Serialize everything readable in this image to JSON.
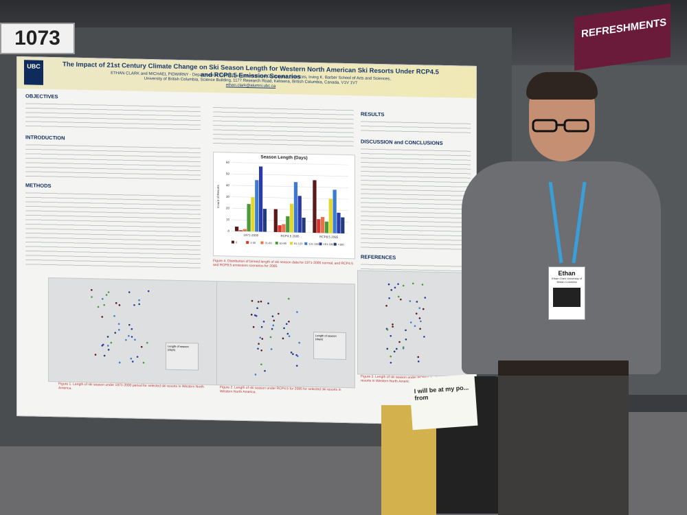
{
  "booth_number": "1073",
  "banner_text": "REFRESHMENTS",
  "poster": {
    "logo": "UBC",
    "title": "The Impact of 21st Century Climate Change on Ski Season Length for Western North American Ski Resorts Under RCP4.5 and RCP8.5 Emission Scenarios",
    "authors": "ETHAN CLARK and MICHAEL PIDWIRNY - Department of Earth, Environmental and Geographic Sciences, Irving K. Barber School of Arts and Sciences,",
    "affiliation": "University of British Columbia, Science Building, 1177 Research Road, Kelowna, British Columbia, Canada, V1V 1V7",
    "email": "ethan.clark@alumni.ubc.ca",
    "sections": {
      "objectives": "OBJECTIVES",
      "introduction": "INTRODUCTION",
      "methods": "METHODS",
      "results": "RESULTS",
      "discussion": "DISCUSSION and CONCLUSIONS",
      "references": "REFERENCES"
    },
    "chart_caption": "Figure 4. Distribution of binned length of ski season data for 1971-2000 normal, and RCP4.5 and RCP8.5 emissions scenarios for 2085.",
    "map_captions": [
      "Figure 1. Length of ski season under 1971-2000 period for selected ski resorts in Western North America.",
      "Figure 2. Length of ski season under RCP4.5 for 2085 for selected ski resorts in Western North America.",
      "Figure 3. Length of ski season under RCP8.5 for 2085 for selected ski resorts in Western North America."
    ],
    "map_legend_title": "Length of season (days)"
  },
  "chart_data": {
    "type": "bar",
    "title": "Season Length (Days)",
    "categories": [
      "1971-2000",
      "RCP4.5 2085",
      "RCP8.5 2085"
    ],
    "series": [
      {
        "name": "0",
        "color": "#5a1a1a",
        "values": [
          4,
          20,
          46
        ]
      },
      {
        "name": "1-30",
        "color": "#d9332b",
        "values": [
          1,
          6,
          12
        ]
      },
      {
        "name": "31-60",
        "color": "#e8704a",
        "values": [
          2,
          7,
          14
        ]
      },
      {
        "name": "61-90",
        "color": "#4a9a3a",
        "values": [
          24,
          14,
          10
        ]
      },
      {
        "name": "91-120",
        "color": "#e4d62b",
        "values": [
          30,
          25,
          30
        ]
      },
      {
        "name": "121-150",
        "color": "#3c7bd0",
        "values": [
          45,
          44,
          38
        ]
      },
      {
        "name": "151-180",
        "color": "#2a3aa8",
        "values": [
          57,
          32,
          18
        ]
      },
      {
        "name": ">180",
        "color": "#213a7a",
        "values": [
          20,
          13,
          14
        ]
      }
    ],
    "ylabel": "Count of Resorts",
    "ylim": [
      0,
      60
    ]
  },
  "badge": {
    "name": "Ethan",
    "subtitle": "Ethan Clark University of British Columbia"
  },
  "note_text": "I will be at my po... from"
}
